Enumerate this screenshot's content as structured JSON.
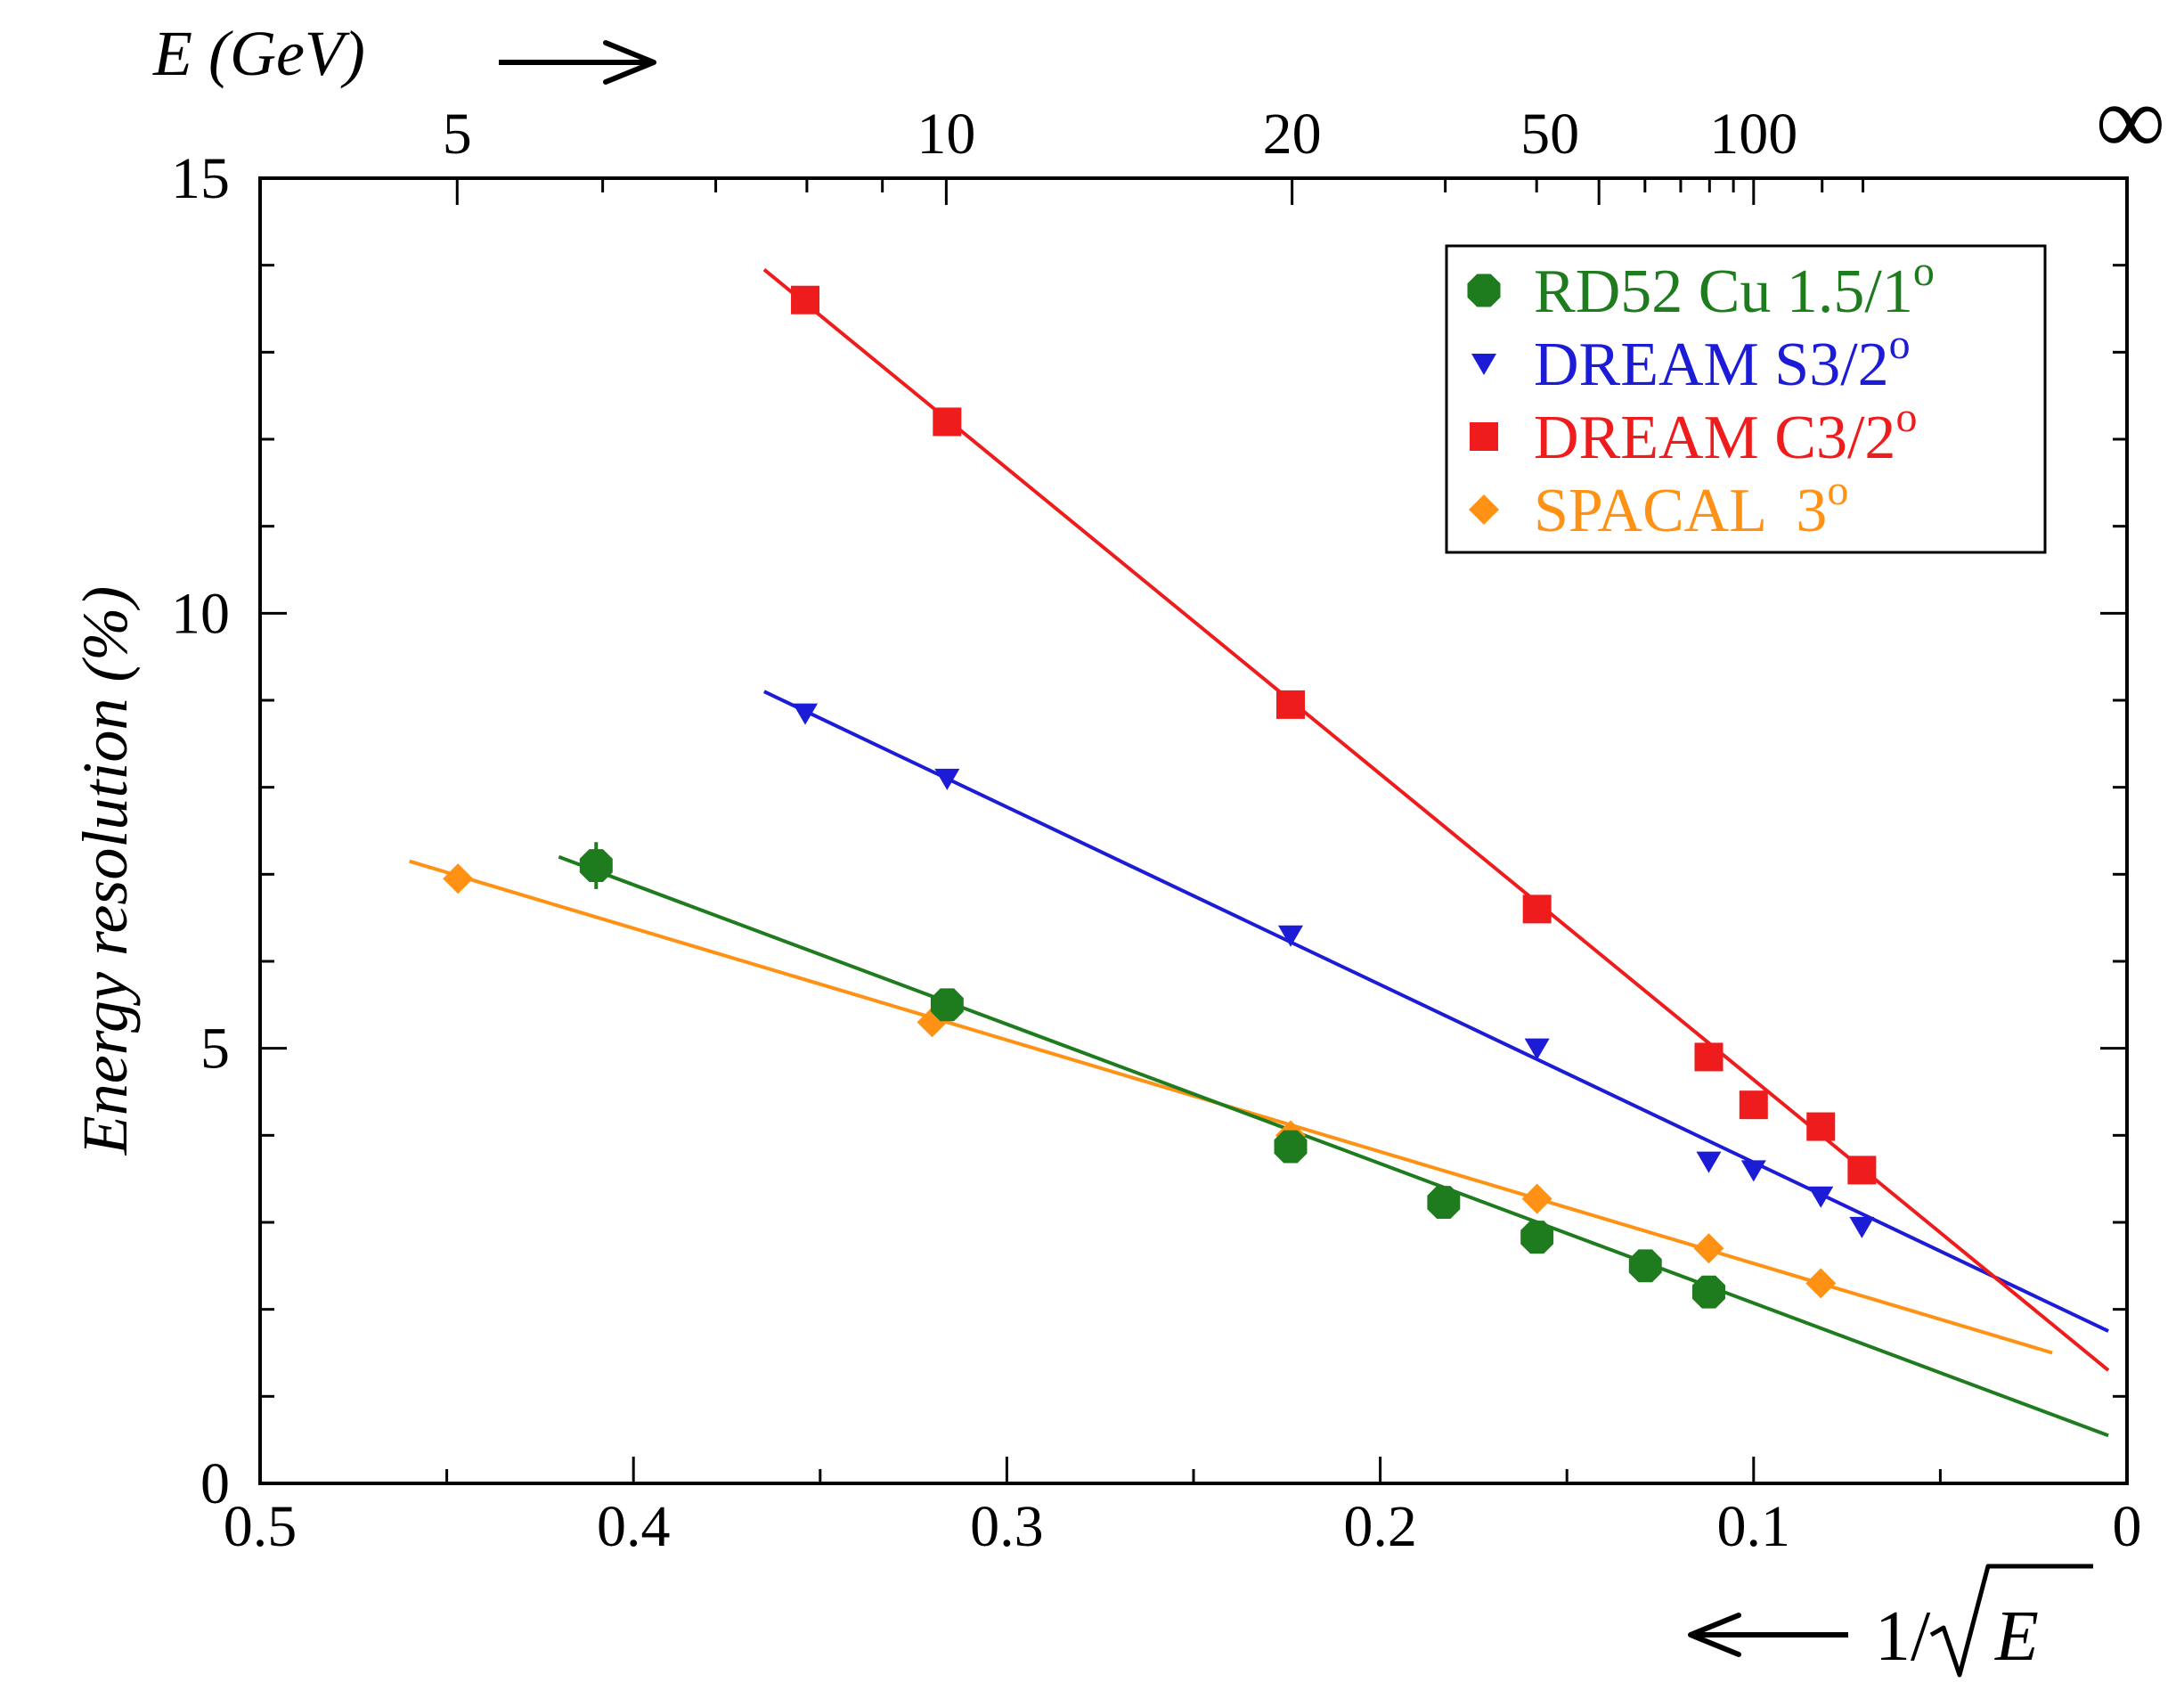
{
  "chart_data": {
    "type": "scatter",
    "ylabel": "Energy resolution (%)",
    "bottom_axis": {
      "range": [
        0.5,
        0
      ],
      "ticks": [
        0.5,
        0.4,
        0.3,
        0.2,
        0.1,
        0
      ],
      "tick_labels": [
        "0.5",
        "0.4",
        "0.3",
        "0.2",
        "0.1",
        "0"
      ],
      "label_prefix": "1/",
      "label_radicand": "E"
    },
    "top_axis": {
      "label": "E (GeV)",
      "ticks": [
        5,
        10,
        20,
        50,
        100
      ],
      "tick_labels": [
        "5",
        "10",
        "20",
        "50",
        "100"
      ],
      "infinity_label": "∞"
    },
    "y_axis": {
      "range": [
        0,
        15
      ],
      "ticks": [
        0,
        5,
        10,
        15
      ],
      "tick_labels": [
        "0",
        "5",
        "10",
        "15"
      ]
    },
    "legend_position": "top-right",
    "series": [
      {
        "name": "RD52 Cu 1.5/1",
        "superscript": "o",
        "color": "#1e7b1e",
        "marker": "octagon",
        "x": [
          0.41,
          0.316,
          0.224,
          0.183,
          0.158,
          0.129,
          0.112
        ],
        "y": [
          7.1,
          5.5,
          3.87,
          3.23,
          2.83,
          2.5,
          2.2
        ],
        "fit": {
          "x": [
            0.42,
            0.005
          ],
          "y": [
            7.2,
            0.55
          ]
        }
      },
      {
        "name": "DREAM S3/2",
        "superscript": "o",
        "color": "#1c1cd6",
        "marker": "triangle-down",
        "x": [
          0.354,
          0.316,
          0.224,
          0.158,
          0.112,
          0.1,
          0.082,
          0.071
        ],
        "y": [
          8.85,
          8.1,
          6.3,
          5.0,
          3.7,
          3.6,
          3.3,
          2.95
        ],
        "fit": {
          "x": [
            0.365,
            0.005
          ],
          "y": [
            9.1,
            1.75
          ]
        }
      },
      {
        "name": "DREAM C3/2",
        "superscript": "o",
        "color": "#ee1c1c",
        "marker": "square",
        "x": [
          0.354,
          0.316,
          0.224,
          0.158,
          0.112,
          0.1,
          0.082,
          0.071
        ],
        "y": [
          13.6,
          12.2,
          8.95,
          6.6,
          4.9,
          4.35,
          4.1,
          3.6
        ],
        "fit": {
          "x": [
            0.365,
            0.005
          ],
          "y": [
            13.95,
            1.3
          ]
        }
      },
      {
        "name": "SPACAL  3",
        "superscript": "o",
        "color": "#ff9214",
        "marker": "diamond",
        "x": [
          0.447,
          0.32,
          0.224,
          0.158,
          0.112,
          0.082
        ],
        "y": [
          6.95,
          5.3,
          4.0,
          3.27,
          2.7,
          2.3
        ],
        "fit": {
          "x": [
            0.46,
            0.02
          ],
          "y": [
            7.15,
            1.5
          ]
        }
      }
    ]
  }
}
